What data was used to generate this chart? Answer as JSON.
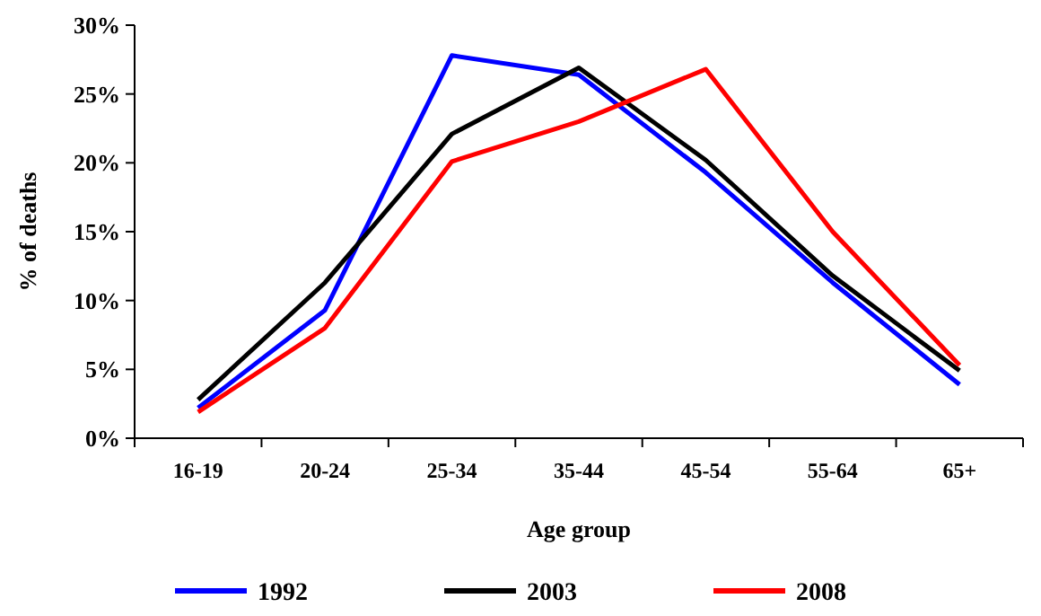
{
  "chart_data": {
    "type": "line",
    "xlabel": "Age group",
    "ylabel": "% of deaths",
    "categories": [
      "16-19",
      "20-24",
      "25-34",
      "35-44",
      "45-54",
      "55-64",
      "65+"
    ],
    "series": [
      {
        "name": "1992",
        "color": "#0000ff",
        "values": [
          2.2,
          9.3,
          27.8,
          26.4,
          19.3,
          11.3,
          3.9
        ]
      },
      {
        "name": "2003",
        "color": "#000000",
        "values": [
          2.8,
          11.3,
          22.1,
          26.9,
          20.2,
          11.8,
          4.9
        ]
      },
      {
        "name": "2008",
        "color": "#ff0000",
        "values": [
          1.9,
          8.0,
          20.1,
          23.0,
          26.8,
          15.0,
          5.3
        ]
      }
    ],
    "ylim": [
      0,
      30
    ],
    "yticks": [
      {
        "value": 0,
        "label": "0%"
      },
      {
        "value": 5,
        "label": "5%"
      },
      {
        "value": 10,
        "label": "10%"
      },
      {
        "value": 15,
        "label": "15%"
      },
      {
        "value": 20,
        "label": "20%"
      },
      {
        "value": 25,
        "label": "25%"
      },
      {
        "value": 30,
        "label": "30%"
      }
    ],
    "grid": false,
    "legend": "bottom",
    "marker": "none",
    "line_style": "solid"
  }
}
